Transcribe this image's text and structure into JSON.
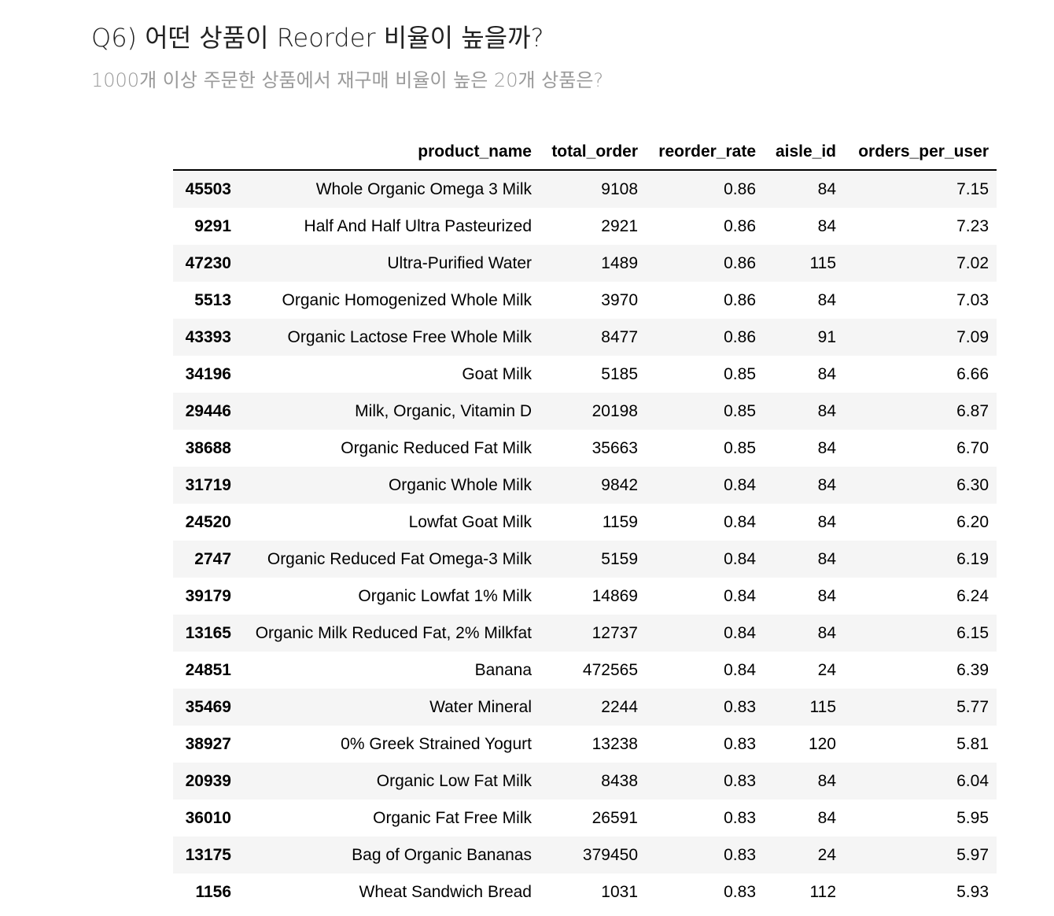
{
  "header": {
    "title": "Q6) 어떤 상품이 Reorder 비율이 높을까?",
    "subtitle": "1000개 이상 주문한 상품에서 재구매 비율이 높은 20개 상품은?"
  },
  "table": {
    "columns": [
      "",
      "product_name",
      "total_order",
      "reorder_rate",
      "aisle_id",
      "orders_per_user"
    ],
    "rows": [
      {
        "index": "45503",
        "product_name": "Whole Organic Omega 3 Milk",
        "total_order": "9108",
        "reorder_rate": "0.86",
        "aisle_id": "84",
        "orders_per_user": "7.15"
      },
      {
        "index": "9291",
        "product_name": "Half And Half Ultra Pasteurized",
        "total_order": "2921",
        "reorder_rate": "0.86",
        "aisle_id": "84",
        "orders_per_user": "7.23"
      },
      {
        "index": "47230",
        "product_name": "Ultra-Purified Water",
        "total_order": "1489",
        "reorder_rate": "0.86",
        "aisle_id": "115",
        "orders_per_user": "7.02"
      },
      {
        "index": "5513",
        "product_name": "Organic Homogenized Whole Milk",
        "total_order": "3970",
        "reorder_rate": "0.86",
        "aisle_id": "84",
        "orders_per_user": "7.03"
      },
      {
        "index": "43393",
        "product_name": "Organic Lactose Free Whole Milk",
        "total_order": "8477",
        "reorder_rate": "0.86",
        "aisle_id": "91",
        "orders_per_user": "7.09"
      },
      {
        "index": "34196",
        "product_name": "Goat Milk",
        "total_order": "5185",
        "reorder_rate": "0.85",
        "aisle_id": "84",
        "orders_per_user": "6.66"
      },
      {
        "index": "29446",
        "product_name": "Milk, Organic, Vitamin D",
        "total_order": "20198",
        "reorder_rate": "0.85",
        "aisle_id": "84",
        "orders_per_user": "6.87"
      },
      {
        "index": "38688",
        "product_name": "Organic Reduced Fat Milk",
        "total_order": "35663",
        "reorder_rate": "0.85",
        "aisle_id": "84",
        "orders_per_user": "6.70"
      },
      {
        "index": "31719",
        "product_name": "Organic Whole Milk",
        "total_order": "9842",
        "reorder_rate": "0.84",
        "aisle_id": "84",
        "orders_per_user": "6.30"
      },
      {
        "index": "24520",
        "product_name": "Lowfat Goat Milk",
        "total_order": "1159",
        "reorder_rate": "0.84",
        "aisle_id": "84",
        "orders_per_user": "6.20"
      },
      {
        "index": "2747",
        "product_name": "Organic Reduced Fat Omega-3 Milk",
        "total_order": "5159",
        "reorder_rate": "0.84",
        "aisle_id": "84",
        "orders_per_user": "6.19"
      },
      {
        "index": "39179",
        "product_name": "Organic Lowfat 1% Milk",
        "total_order": "14869",
        "reorder_rate": "0.84",
        "aisle_id": "84",
        "orders_per_user": "6.24"
      },
      {
        "index": "13165",
        "product_name": "Organic Milk Reduced Fat, 2% Milkfat",
        "total_order": "12737",
        "reorder_rate": "0.84",
        "aisle_id": "84",
        "orders_per_user": "6.15"
      },
      {
        "index": "24851",
        "product_name": "Banana",
        "total_order": "472565",
        "reorder_rate": "0.84",
        "aisle_id": "24",
        "orders_per_user": "6.39"
      },
      {
        "index": "35469",
        "product_name": "Water Mineral",
        "total_order": "2244",
        "reorder_rate": "0.83",
        "aisle_id": "115",
        "orders_per_user": "5.77"
      },
      {
        "index": "38927",
        "product_name": "0% Greek Strained Yogurt",
        "total_order": "13238",
        "reorder_rate": "0.83",
        "aisle_id": "120",
        "orders_per_user": "5.81"
      },
      {
        "index": "20939",
        "product_name": "Organic Low Fat Milk",
        "total_order": "8438",
        "reorder_rate": "0.83",
        "aisle_id": "84",
        "orders_per_user": "6.04"
      },
      {
        "index": "36010",
        "product_name": "Organic Fat Free Milk",
        "total_order": "26591",
        "reorder_rate": "0.83",
        "aisle_id": "84",
        "orders_per_user": "5.95"
      },
      {
        "index": "13175",
        "product_name": "Bag of Organic Bananas",
        "total_order": "379450",
        "reorder_rate": "0.83",
        "aisle_id": "24",
        "orders_per_user": "5.97"
      },
      {
        "index": "1156",
        "product_name": "Wheat Sandwich Bread",
        "total_order": "1031",
        "reorder_rate": "0.83",
        "aisle_id": "112",
        "orders_per_user": "5.93"
      }
    ]
  }
}
